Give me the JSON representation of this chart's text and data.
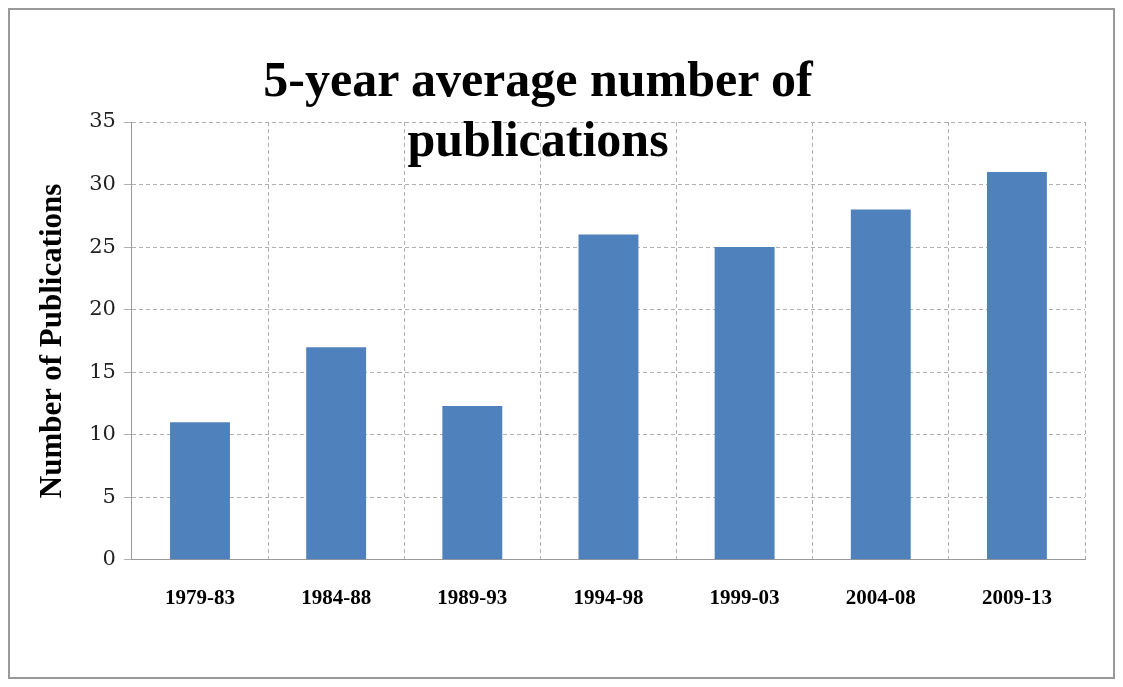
{
  "chart_data": {
    "type": "bar",
    "title": "5-year average number of publications",
    "ylabel": "Number of Publications",
    "categories": [
      "1979-83",
      "1984-88",
      "1989-93",
      "1994-98",
      "1999-03",
      "2004-08",
      "2009-13"
    ],
    "values": [
      11,
      17,
      12.3,
      26,
      25,
      28,
      31
    ],
    "color": "#4f81bd",
    "ylim": [
      0,
      35
    ],
    "yticks": [
      0,
      5,
      10,
      15,
      20,
      25,
      30,
      35
    ],
    "grid": true
  }
}
